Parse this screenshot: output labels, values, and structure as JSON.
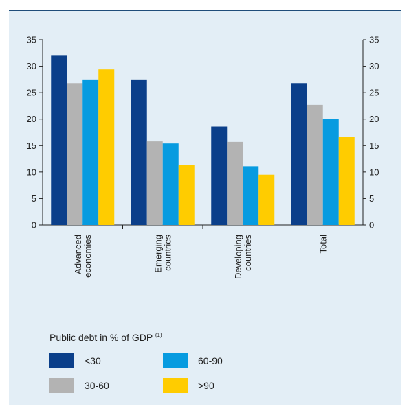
{
  "chart_data": {
    "type": "bar",
    "categories": [
      [
        "Advanced",
        "economies"
      ],
      [
        "Emerging",
        "countries"
      ],
      [
        "Developing",
        "countries"
      ],
      [
        "Total"
      ]
    ],
    "series": [
      {
        "name": "<30",
        "color": "#0b3f8a",
        "values": [
          32.1,
          27.5,
          18.6,
          26.8
        ]
      },
      {
        "name": "30-60",
        "color": "#b3b3b3",
        "values": [
          26.8,
          15.8,
          15.7,
          22.7
        ]
      },
      {
        "name": "60-90",
        "color": "#079be0",
        "values": [
          27.5,
          15.4,
          11.1,
          20.0
        ]
      },
      {
        "name": ">90",
        "color": "#ffcc00",
        "values": [
          29.4,
          11.4,
          9.5,
          16.6
        ]
      }
    ],
    "ylim": [
      0,
      35
    ],
    "yticks": [
      0,
      5,
      10,
      15,
      20,
      25,
      30,
      35
    ],
    "grid": false,
    "legend": {
      "title": "Public debt in % of GDP",
      "title_superscript": "(1)",
      "placement": "bottom"
    }
  }
}
